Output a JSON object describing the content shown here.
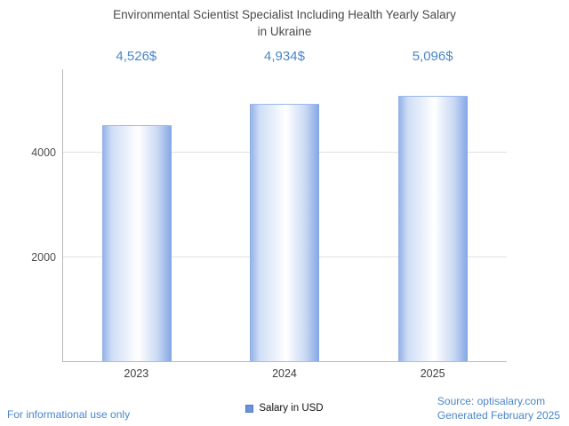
{
  "title": {
    "line1": "Environmental Scientist Specialist Including Health Yearly Salary",
    "line2": "in Ukraine"
  },
  "chart_data": {
    "type": "bar",
    "title": "Environmental Scientist Specialist Including Health Yearly Salary in Ukraine",
    "categories": [
      "2023",
      "2024",
      "2025"
    ],
    "values": [
      4526,
      4934,
      5096
    ],
    "value_labels": [
      "4,526$",
      "4,934$",
      "5,096$"
    ],
    "series_name": "Salary in USD",
    "xlabel": "",
    "ylabel": "",
    "ylim": [
      0,
      5600
    ],
    "yticks": [
      2000,
      4000
    ],
    "grid": true,
    "legend_position": "bottom",
    "colors": {
      "value_label_blue": "#4a86c8",
      "bar_gradient_edge": "#8fafe6",
      "bar_gradient_center": "#ffffff",
      "legend_swatch": "#6b94d6"
    }
  },
  "footer": {
    "left_note": "For informational use only",
    "source": "Source: optisalary.com",
    "generated": "Generated February 2025"
  }
}
